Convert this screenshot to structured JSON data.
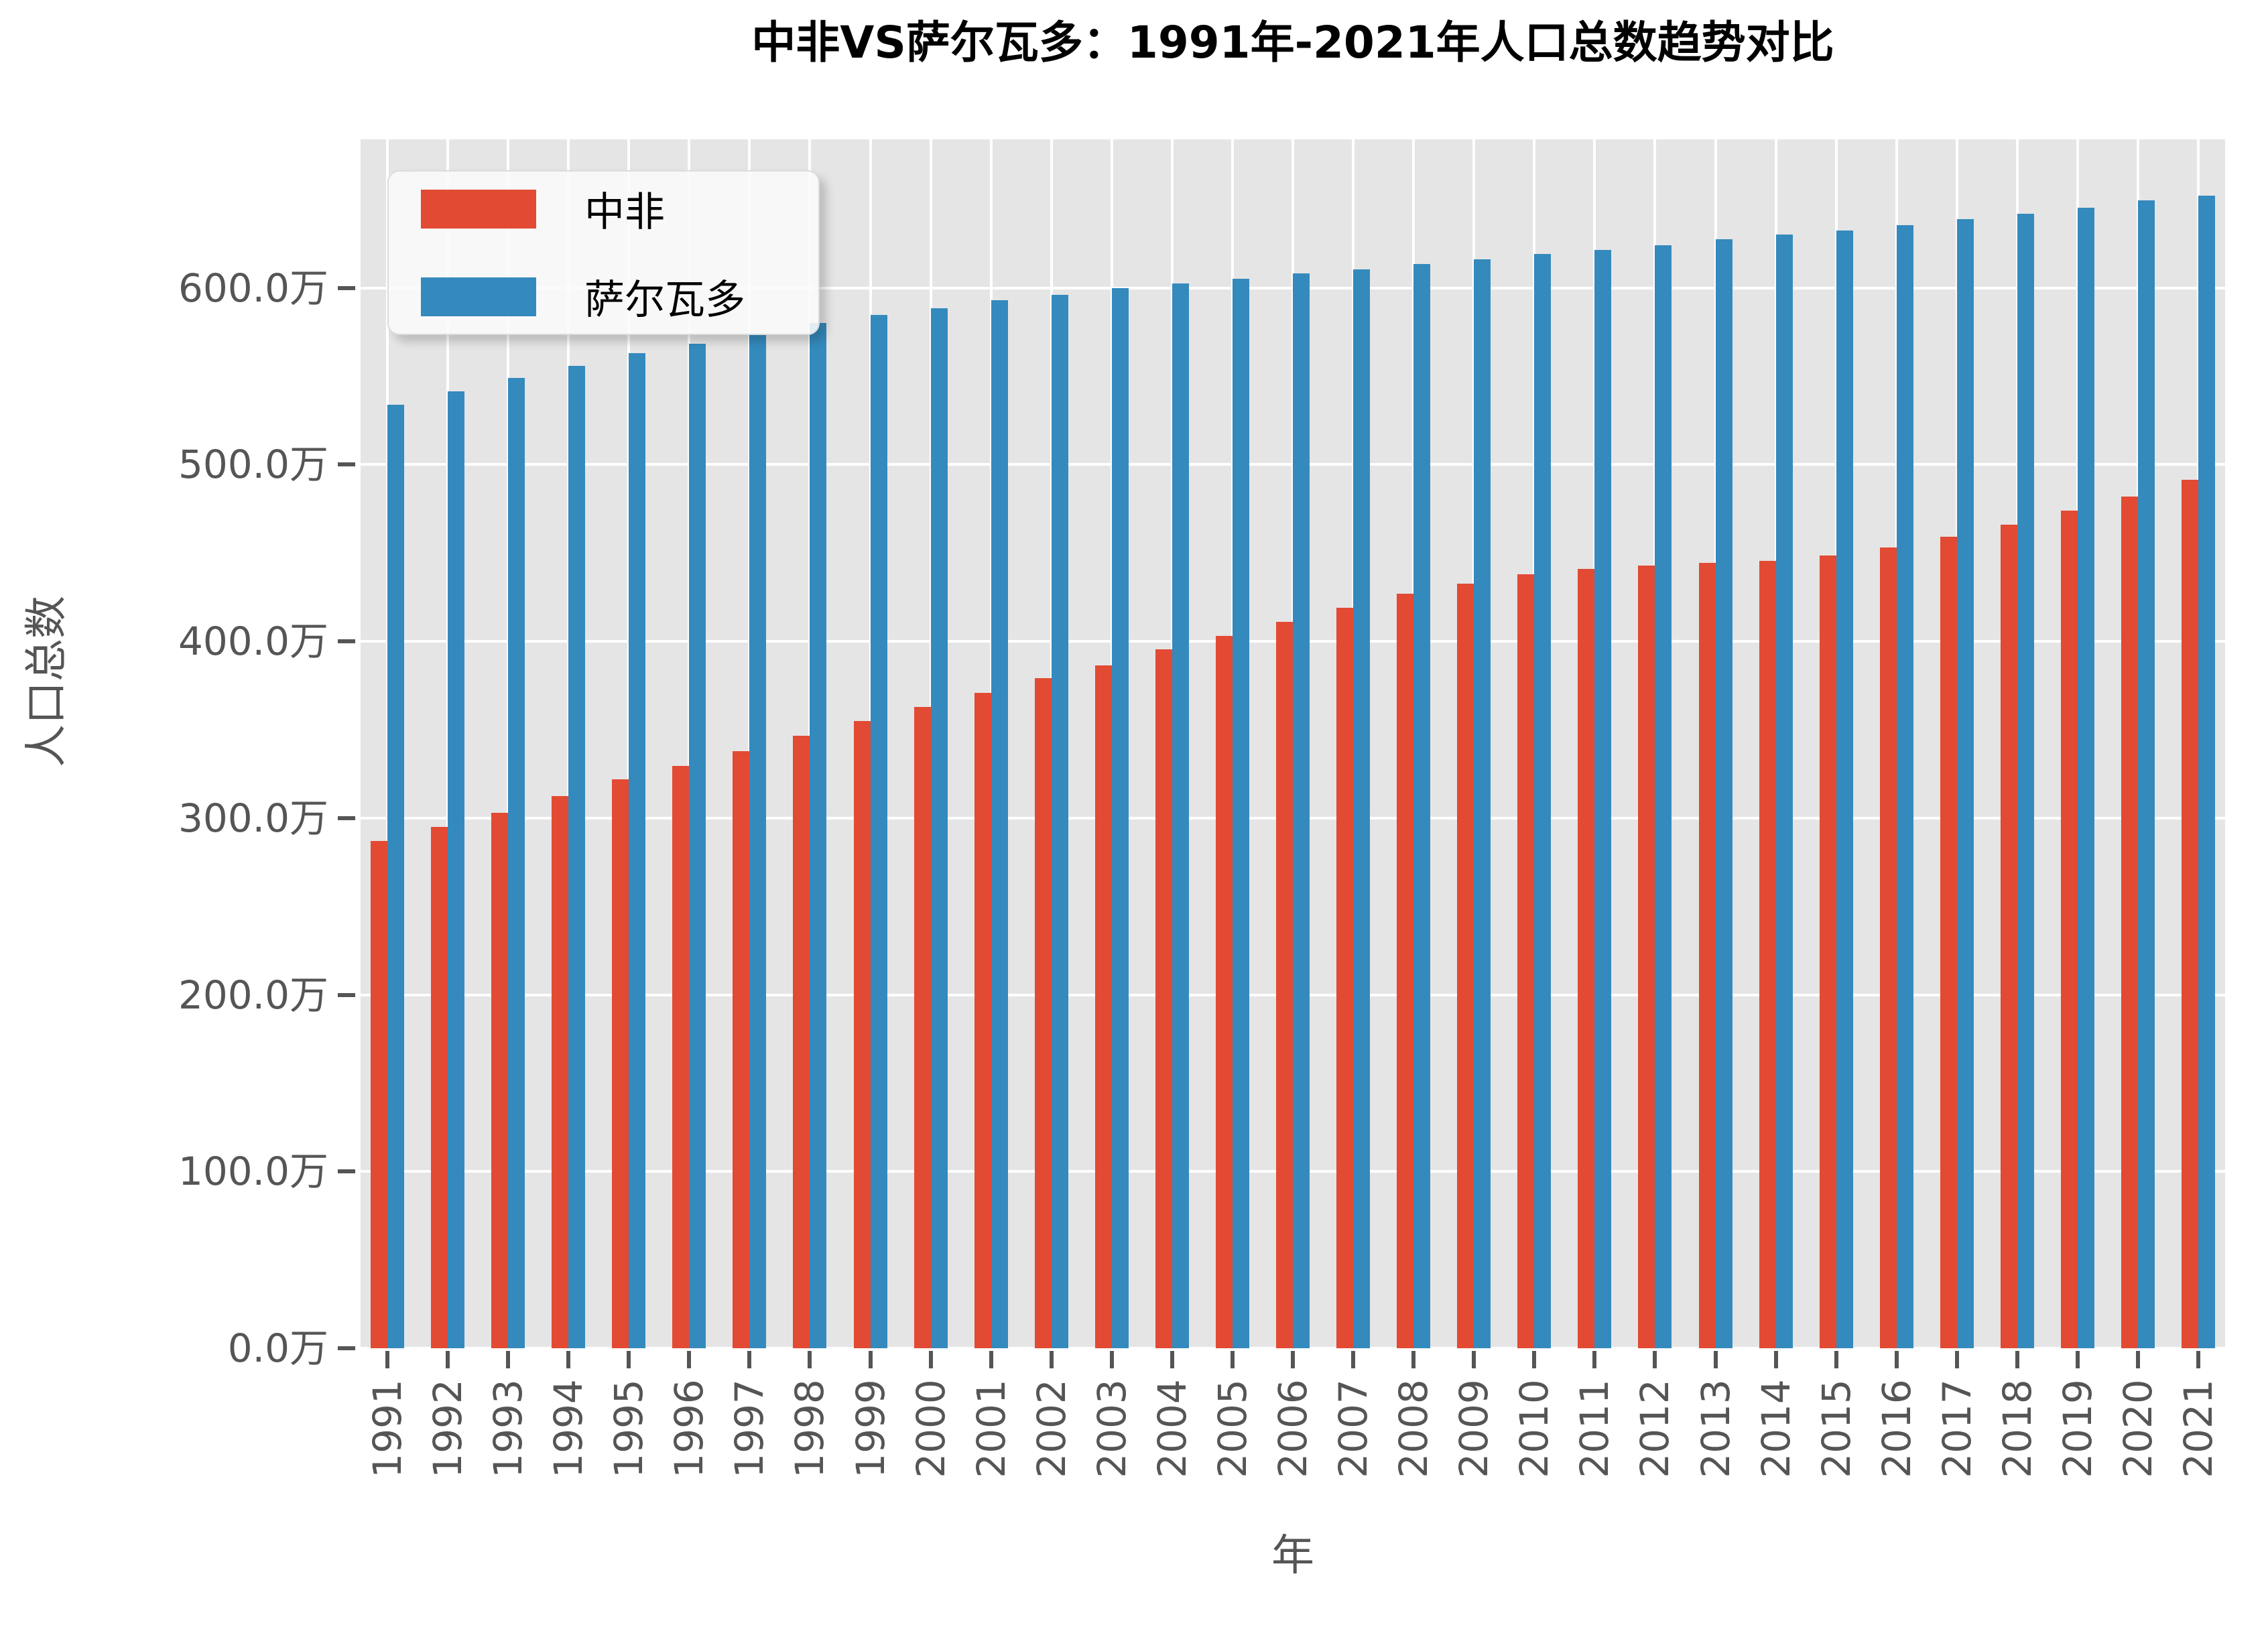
{
  "title": "中非VS萨尔瓦多：1991年-2021年人口总数趋势对比",
  "legend": {
    "items": [
      {
        "label": "中非",
        "color": "#E24A33"
      },
      {
        "label": "萨尔瓦多",
        "color": "#348ABD"
      }
    ]
  },
  "axes": {
    "xlabel": "年",
    "ylabel": "人口总数",
    "y_tick_labels": [
      "0.0万",
      "100.0万",
      "200.0万",
      "300.0万",
      "400.0万",
      "500.0万",
      "600.0万"
    ],
    "y_tick_values": [
      0,
      100,
      200,
      300,
      400,
      500,
      600
    ]
  },
  "colors": {
    "series_red": "#E24A33",
    "series_blue": "#348ABD",
    "plot_background": "#E5E5E5",
    "gridline": "#FFFFFF",
    "tick_text": "#555555",
    "title_text": "#000000"
  },
  "chart_data": {
    "type": "bar",
    "title": "中非VS萨尔瓦多：1991年-2021年人口总数趋势对比",
    "xlabel": "年",
    "ylabel": "人口总数",
    "unit": "万",
    "grid": true,
    "legend_position": "upper left",
    "ylim": [
      0,
      684
    ],
    "categories": [
      1991,
      1992,
      1993,
      1994,
      1995,
      1996,
      1997,
      1998,
      1999,
      2000,
      2001,
      2002,
      2003,
      2004,
      2005,
      2006,
      2007,
      2008,
      2009,
      2010,
      2011,
      2012,
      2013,
      2014,
      2015,
      2016,
      2017,
      2018,
      2019,
      2020,
      2021
    ],
    "series": [
      {
        "name": "中非",
        "color": "#E24A33",
        "values": [
          287,
          295,
          303,
          312.5,
          322,
          329.5,
          338,
          346.5,
          355,
          363,
          371,
          379,
          386.5,
          395.5,
          403,
          411,
          419,
          427,
          432.5,
          438,
          441,
          443,
          444.5,
          445.5,
          448.5,
          453,
          459,
          466,
          474,
          482,
          491.5
        ]
      },
      {
        "name": "萨尔瓦多",
        "color": "#348ABD",
        "values": [
          534,
          541.5,
          549,
          556,
          563,
          568.5,
          574,
          580,
          584.5,
          588.5,
          593,
          596,
          600,
          602.5,
          605,
          608,
          610.5,
          613.5,
          616,
          619,
          621.5,
          624,
          627.5,
          630,
          632.5,
          635.5,
          639,
          642,
          645.5,
          649.5,
          652
        ]
      }
    ]
  }
}
